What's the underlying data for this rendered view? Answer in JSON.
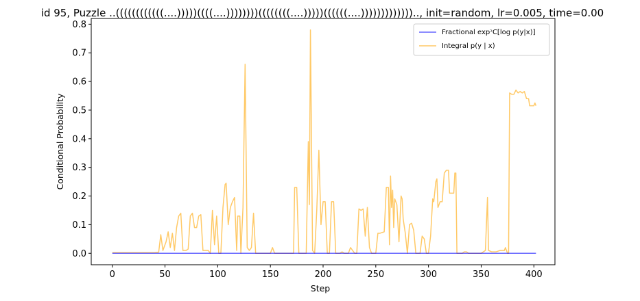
{
  "chart_data": {
    "type": "line",
    "title": "id 95, Puzzle ..((((((((((((....)))))((((....))))))))((((((((....)))))((((((....))))))))))))).., init=random, lr=0.005, time=0.00",
    "xlabel": "Step",
    "ylabel": "Conditional Probability",
    "xlim": [
      -20,
      420
    ],
    "ylim": [
      -0.04,
      0.82
    ],
    "xticks": [
      0,
      50,
      100,
      150,
      200,
      250,
      300,
      350,
      400
    ],
    "yticks": [
      0.0,
      0.1,
      0.2,
      0.3,
      0.4,
      0.5,
      0.6,
      0.7,
      0.8
    ],
    "xtick_labels": [
      "0",
      "50",
      "100",
      "150",
      "200",
      "250",
      "300",
      "350",
      "400"
    ],
    "ytick_labels": [
      "0.0",
      "0.1",
      "0.2",
      "0.3",
      "0.4",
      "0.5",
      "0.6",
      "0.7",
      "0.8"
    ],
    "grid": false,
    "legend_position": "top-right",
    "series": [
      {
        "name": "Fractional expᵓC[log p(y|x)]",
        "color": "#0000ff",
        "points": [
          [
            0,
            0.0
          ],
          [
            402,
            0.0
          ]
        ]
      },
      {
        "name": "Integral p(y | x)",
        "color": "#ffa500",
        "points": [
          [
            0,
            0.002
          ],
          [
            40,
            0.002
          ],
          [
            44,
            0.004
          ],
          [
            46,
            0.065
          ],
          [
            48,
            0.01
          ],
          [
            51,
            0.04
          ],
          [
            53,
            0.075
          ],
          [
            55,
            0.02
          ],
          [
            57,
            0.07
          ],
          [
            59,
            0.01
          ],
          [
            61,
            0.09
          ],
          [
            63,
            0.13
          ],
          [
            65,
            0.14
          ],
          [
            67,
            0.01
          ],
          [
            70,
            0.01
          ],
          [
            72,
            0.015
          ],
          [
            74,
            0.13
          ],
          [
            76,
            0.14
          ],
          [
            78,
            0.09
          ],
          [
            80,
            0.09
          ],
          [
            82,
            0.13
          ],
          [
            84,
            0.135
          ],
          [
            86,
            0.01
          ],
          [
            88,
            0.01
          ],
          [
            91,
            0.01
          ],
          [
            93,
            0.0
          ],
          [
            95,
            0.15
          ],
          [
            97,
            0.03
          ],
          [
            99,
            0.13
          ],
          [
            101,
            0.0
          ],
          [
            103,
            0.0
          ],
          [
            105,
            0.16
          ],
          [
            107,
            0.24
          ],
          [
            108,
            0.245
          ],
          [
            110,
            0.1
          ],
          [
            112,
            0.16
          ],
          [
            114,
            0.18
          ],
          [
            116,
            0.195
          ],
          [
            118,
            0.01
          ],
          [
            119,
            0.13
          ],
          [
            121,
            0.13
          ],
          [
            122,
            0.0
          ],
          [
            124,
            0.16
          ],
          [
            126,
            0.66
          ],
          [
            128,
            0.02
          ],
          [
            130,
            0.01
          ],
          [
            132,
            0.02
          ],
          [
            134,
            0.14
          ],
          [
            136,
            0.0
          ],
          [
            150,
            0.0
          ],
          [
            152,
            0.02
          ],
          [
            154,
            0.0
          ],
          [
            172,
            0.0
          ],
          [
            173,
            0.23
          ],
          [
            175,
            0.23
          ],
          [
            177,
            0.0
          ],
          [
            184,
            0.0
          ],
          [
            186,
            0.39
          ],
          [
            187,
            0.17
          ],
          [
            188,
            0.78
          ],
          [
            190,
            0.01
          ],
          [
            192,
            0.0
          ],
          [
            194,
            0.15
          ],
          [
            196,
            0.36
          ],
          [
            198,
            0.1
          ],
          [
            200,
            0.18
          ],
          [
            202,
            0.18
          ],
          [
            204,
            0.0
          ],
          [
            206,
            0.0
          ],
          [
            208,
            0.18
          ],
          [
            210,
            0.18
          ],
          [
            212,
            0.0
          ],
          [
            216,
            0.0
          ],
          [
            218,
            0.005
          ],
          [
            220,
            0.0
          ],
          [
            224,
            0.0
          ],
          [
            226,
            0.02
          ],
          [
            228,
            0.01
          ],
          [
            230,
            0.0
          ],
          [
            232,
            0.0
          ],
          [
            234,
            0.155
          ],
          [
            236,
            0.15
          ],
          [
            238,
            0.155
          ],
          [
            240,
            0.06
          ],
          [
            242,
            0.16
          ],
          [
            244,
            0.02
          ],
          [
            246,
            0.0
          ],
          [
            250,
            0.0
          ],
          [
            252,
            0.07
          ],
          [
            254,
            0.07
          ],
          [
            258,
            0.075
          ],
          [
            260,
            0.23
          ],
          [
            262,
            0.23
          ],
          [
            263,
            0.03
          ],
          [
            264,
            0.27
          ],
          [
            265,
            0.16
          ],
          [
            266,
            0.22
          ],
          [
            267,
            0.09
          ],
          [
            268,
            0.19
          ],
          [
            270,
            0.17
          ],
          [
            272,
            0.04
          ],
          [
            274,
            0.2
          ],
          [
            275,
            0.19
          ],
          [
            276,
            0.12
          ],
          [
            278,
            0.07
          ],
          [
            280,
            0.0
          ],
          [
            282,
            0.1
          ],
          [
            284,
            0.105
          ],
          [
            286,
            0.08
          ],
          [
            288,
            0.0
          ],
          [
            292,
            0.0
          ],
          [
            294,
            0.06
          ],
          [
            296,
            0.05
          ],
          [
            298,
            0.0
          ],
          [
            300,
            0.0
          ],
          [
            302,
            0.06
          ],
          [
            304,
            0.19
          ],
          [
            305,
            0.18
          ],
          [
            307,
            0.25
          ],
          [
            308,
            0.26
          ],
          [
            309,
            0.16
          ],
          [
            311,
            0.18
          ],
          [
            313,
            0.18
          ],
          [
            315,
            0.28
          ],
          [
            317,
            0.29
          ],
          [
            319,
            0.29
          ],
          [
            320,
            0.21
          ],
          [
            322,
            0.21
          ],
          [
            324,
            0.21
          ],
          [
            325,
            0.28
          ],
          [
            326,
            0.28
          ],
          [
            327,
            0.0
          ],
          [
            332,
            0.0
          ],
          [
            334,
            0.005
          ],
          [
            336,
            0.005
          ],
          [
            338,
            0.0
          ],
          [
            350,
            0.0
          ],
          [
            354,
            0.01
          ],
          [
            356,
            0.195
          ],
          [
            357,
            0.01
          ],
          [
            360,
            0.005
          ],
          [
            364,
            0.005
          ],
          [
            368,
            0.01
          ],
          [
            372,
            0.01
          ],
          [
            373,
            0.02
          ],
          [
            375,
            0.0
          ],
          [
            376,
            0.0
          ],
          [
            377,
            0.56
          ],
          [
            379,
            0.555
          ],
          [
            381,
            0.555
          ],
          [
            383,
            0.57
          ],
          [
            385,
            0.56
          ],
          [
            387,
            0.565
          ],
          [
            389,
            0.56
          ],
          [
            391,
            0.565
          ],
          [
            393,
            0.54
          ],
          [
            395,
            0.54
          ],
          [
            396,
            0.515
          ],
          [
            398,
            0.515
          ],
          [
            400,
            0.515
          ],
          [
            401,
            0.525
          ],
          [
            402,
            0.515
          ]
        ]
      }
    ]
  }
}
